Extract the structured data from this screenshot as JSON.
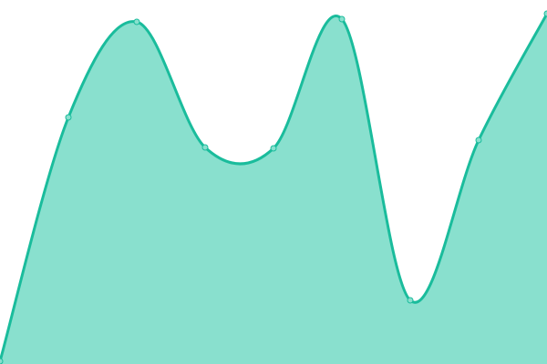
{
  "chart_data": {
    "type": "area",
    "categories": [
      null,
      null,
      null,
      null,
      null,
      null,
      null,
      null,
      null
    ],
    "values": [
      3,
      271,
      376,
      238,
      237,
      379,
      70,
      246,
      385
    ],
    "color": "#1abc9c",
    "fill": "#89e0ce",
    "ylim": [
      0,
      400
    ]
  }
}
